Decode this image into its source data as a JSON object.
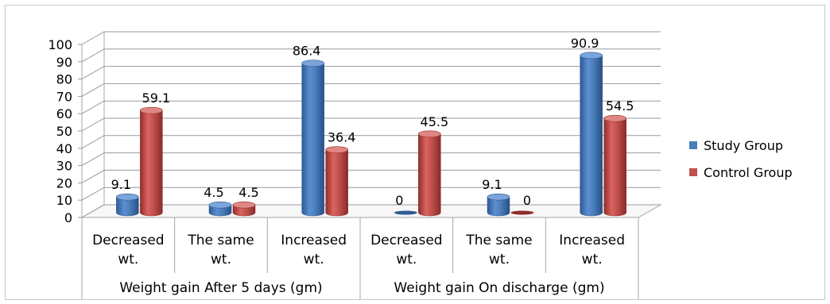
{
  "chart_data": {
    "type": "bar",
    "title": "",
    "xlabel": "",
    "ylabel": "",
    "ylim": [
      0,
      100
    ],
    "yticks": [
      0,
      10,
      20,
      30,
      40,
      50,
      60,
      70,
      80,
      90,
      100
    ],
    "grid": true,
    "legend_position": "right",
    "groups": [
      {
        "label": "Weight gain After 5 days (gm)",
        "categories": [
          "Decreased wt.",
          "The same wt.",
          "Increased wt."
        ]
      },
      {
        "label": "Weight gain On discharge (gm)",
        "categories": [
          "Decreased wt.",
          "The same wt.",
          "Increased wt."
        ]
      }
    ],
    "category_lines": [
      [
        "Decreased",
        "wt."
      ],
      [
        "The same",
        "wt."
      ],
      [
        "Increased",
        "wt."
      ],
      [
        "Decreased",
        "wt."
      ],
      [
        "The same",
        "wt."
      ],
      [
        "Increased",
        "wt."
      ]
    ],
    "series": [
      {
        "name": "Study Group",
        "color": "#4a7ebb",
        "values": [
          9.1,
          4.5,
          86.4,
          0,
          9.1,
          90.9
        ],
        "labels": [
          "9.1",
          "4.5",
          "86.4",
          "0",
          "9.1",
          "90.9"
        ]
      },
      {
        "name": "Control Group",
        "color": "#c0504d",
        "values": [
          59.1,
          4.5,
          36.4,
          45.5,
          0,
          54.5
        ],
        "labels": [
          "59.1",
          "4.5",
          "36.4",
          "45.5",
          "0",
          "54.5"
        ]
      }
    ]
  }
}
